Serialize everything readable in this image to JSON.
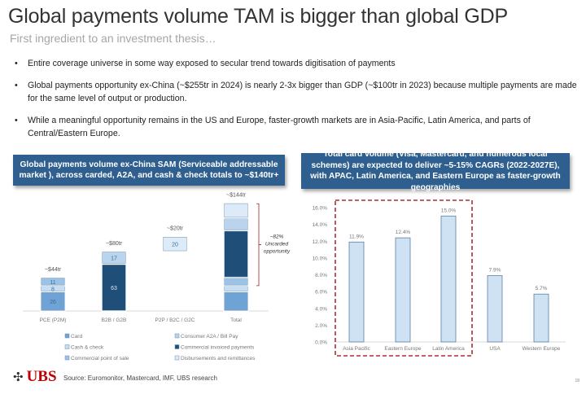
{
  "title": "Global payments volume TAM is bigger than global GDP",
  "subtitle": "First ingredient to an investment thesis…",
  "bullets": [
    "Entire coverage universe in some way exposed to secular trend towards digitisation of payments",
    "Global payments opportunity ex-China (~$255tr in 2024) is nearly 2-3x bigger than GDP (~$100tr in 2023) because multiple payments are made for the same level of output or production.",
    "While a meaningful opportunity remains in the US and Europe, faster-growth markets are in Asia-Pacific, Latin America, and parts of Central/Eastern Europe."
  ],
  "footer": {
    "logo": "UBS",
    "source": "Source: Euromonitor, Mastercard, IMF, UBS research",
    "page": "18"
  },
  "chart_data": [
    {
      "type": "bar",
      "stacked": true,
      "title": "Global payments volume ex-China SAM (Serviceable addressable market ), across carded, A2A, and cash & check totals to ~$140tr+",
      "categories": [
        "PCE (P2M)",
        "B2B / G2B",
        "P2P / B2C / G2C",
        "Total"
      ],
      "totals_labels": [
        "~$44tr",
        "~$80tr",
        "~$20tr",
        "~$144tr"
      ],
      "series": [
        {
          "name": "Card",
          "color": "#6fa3d6",
          "values": [
            26,
            0,
            0,
            26
          ]
        },
        {
          "name": "Cash & check",
          "color": "#c7ddf1",
          "values": [
            8,
            0,
            0,
            8
          ]
        },
        {
          "name": "Commercial point of sale",
          "color": "#9cc2e6",
          "values": [
            11,
            0,
            0,
            11
          ]
        },
        {
          "name": "Commercial invoiced payments",
          "color": "#1f4e79",
          "values": [
            0,
            63,
            0,
            63
          ]
        },
        {
          "name": "Consumer A2A / Bill Pay",
          "color": "#b9d4ec",
          "values": [
            0,
            17,
            0,
            17
          ]
        },
        {
          "name": "Disbursements and remittances",
          "color": "#dcebf7",
          "values": [
            0,
            0,
            20,
            20
          ]
        }
      ],
      "data_labels_shown": {
        "PCE (P2M)": [
          26,
          8,
          11
        ],
        "B2B / G2B": [
          63,
          17
        ],
        "P2P / B2C / G2C": [
          20
        ]
      },
      "annotation": {
        "text1": "~82%",
        "text2": "Uncarded",
        "text3": "opportunity",
        "color": "#a0202a"
      },
      "legend": "bottom",
      "ylim": [
        0,
        150
      ]
    },
    {
      "type": "bar",
      "title": "Total card volume (Visa, Mastercard, and numerous local schemes) are expected to deliver ~5-15% CAGRs (2022-2027E), with APAC, Latin America, and Eastern Europe as faster-growth geographies",
      "categories": [
        "Asia Pacific",
        "Eastern Europe",
        "Latin America",
        "USA",
        "Western Europe"
      ],
      "values": [
        11.9,
        12.4,
        15.0,
        7.9,
        5.7
      ],
      "value_labels": [
        "11.9%",
        "12.4%",
        "15.0%",
        "7.9%",
        "5.7%"
      ],
      "ylim": [
        0,
        16
      ],
      "yticks": [
        "0.0%",
        "2.0%",
        "4.0%",
        "6.0%",
        "8.0%",
        "10.0%",
        "12.0%",
        "14.0%",
        "16.0%"
      ],
      "bar_color": "#cfe2f3",
      "bar_edge": "#5a7fa5",
      "highlight": {
        "categories": [
          "Asia Pacific",
          "Eastern Europe",
          "Latin America"
        ],
        "color": "#b22a35",
        "style": "dashed"
      },
      "grid": false
    }
  ]
}
